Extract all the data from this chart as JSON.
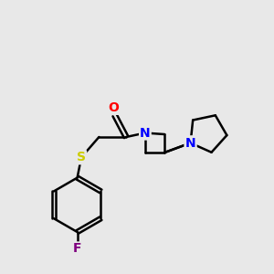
{
  "background_color": "#e8e8e8",
  "bond_color": "#000000",
  "bond_width": 1.8,
  "N_color": "#0000ff",
  "O_color": "#ff0000",
  "S_color": "#cccc00",
  "F_color": "#7f007f",
  "figsize": [
    3.0,
    3.0
  ],
  "dpi": 100,
  "xlim": [
    0,
    10
  ],
  "ylim": [
    0,
    10
  ]
}
